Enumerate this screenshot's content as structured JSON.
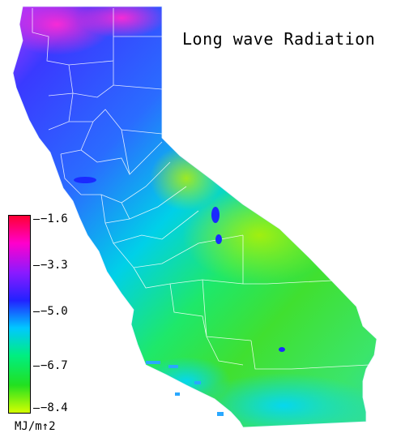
{
  "title": "Long wave Radiation",
  "legend": {
    "ticks": [
      "−1.6",
      "−3.3",
      "−5.0",
      "−6.7",
      "−8.4"
    ],
    "unit": "MJ/m↑2",
    "colors": [
      "#ff0033",
      "#ff00cc",
      "#8a1aff",
      "#2222ff",
      "#00c8ff",
      "#00ee80",
      "#22e020",
      "#d4ff00"
    ]
  }
}
